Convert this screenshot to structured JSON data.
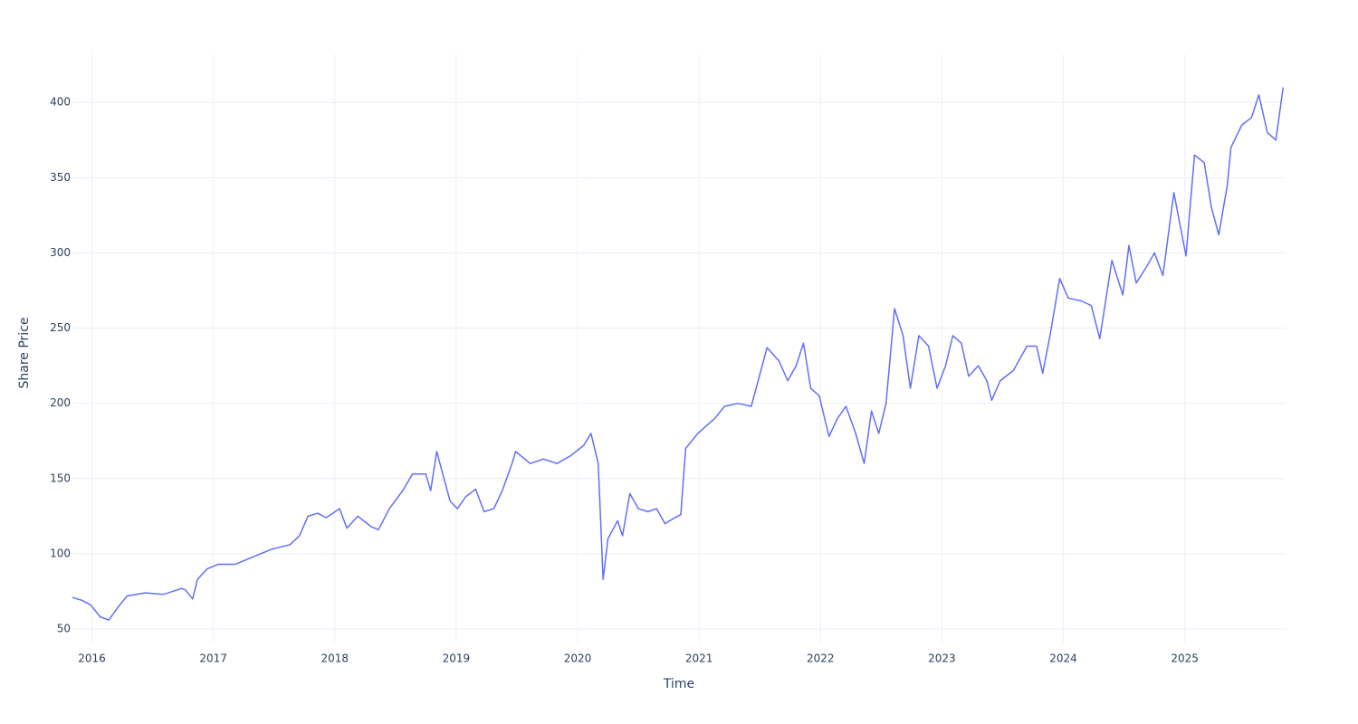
{
  "chart_data": {
    "type": "line",
    "xlabel": "Time",
    "ylabel": "Share Price",
    "color": "#636efa",
    "grid": true,
    "xlim": [
      2015.84,
      2025.83
    ],
    "xticks": [
      2016,
      2017,
      2018,
      2019,
      2020,
      2021,
      2022,
      2023,
      2024,
      2025
    ],
    "ylim": [
      41,
      432
    ],
    "yticks": [
      50,
      100,
      150,
      200,
      250,
      300,
      350,
      400
    ],
    "x": [
      2015.84,
      2015.92,
      2015.99,
      2016.07,
      2016.14,
      2016.22,
      2016.29,
      2016.44,
      2016.59,
      2016.74,
      2016.77,
      2016.83,
      2016.87,
      2016.95,
      2017.04,
      2017.18,
      2017.33,
      2017.48,
      2017.63,
      2017.71,
      2017.78,
      2017.86,
      2017.93,
      2018.04,
      2018.1,
      2018.19,
      2018.3,
      2018.36,
      2018.45,
      2018.56,
      2018.64,
      2018.75,
      2018.79,
      2018.84,
      2018.9,
      2018.95,
      2019.01,
      2019.08,
      2019.16,
      2019.23,
      2019.31,
      2019.38,
      2019.46,
      2019.49,
      2019.61,
      2019.72,
      2019.83,
      2019.94,
      2020.05,
      2020.11,
      2020.17,
      2020.21,
      2020.25,
      2020.33,
      2020.37,
      2020.43,
      2020.5,
      2020.58,
      2020.65,
      2020.72,
      2020.8,
      2020.85,
      2020.89,
      2020.99,
      2021.06,
      2021.13,
      2021.21,
      2021.32,
      2021.43,
      2021.56,
      2021.66,
      2021.73,
      2021.8,
      2021.86,
      2021.92,
      2021.99,
      2022.07,
      2022.14,
      2022.21,
      2022.29,
      2022.36,
      2022.42,
      2022.48,
      2022.54,
      2022.61,
      2022.68,
      2022.74,
      2022.81,
      2022.89,
      2022.96,
      2023.03,
      2023.09,
      2023.16,
      2023.22,
      2023.3,
      2023.37,
      2023.41,
      2023.48,
      2023.59,
      2023.7,
      2023.78,
      2023.83,
      2023.89,
      2023.97,
      2024.04,
      2024.15,
      2024.23,
      2024.3,
      2024.4,
      2024.49,
      2024.54,
      2024.6,
      2024.68,
      2024.75,
      2024.82,
      2024.91,
      2025.01,
      2025.08,
      2025.16,
      2025.22,
      2025.28,
      2025.35,
      2025.38,
      2025.47,
      2025.55,
      2025.61,
      2025.68,
      2025.75,
      2025.81
    ],
    "values": [
      71,
      69,
      66,
      58,
      56,
      65,
      72,
      74,
      73,
      77,
      76,
      70,
      83,
      90,
      93,
      93,
      98,
      103,
      106,
      112,
      125,
      127,
      124,
      130,
      117,
      125,
      118,
      116,
      130,
      142,
      153,
      153,
      142,
      168,
      150,
      135,
      130,
      138,
      143,
      128,
      130,
      142,
      160,
      168,
      160,
      163,
      160,
      165,
      172,
      180,
      160,
      83,
      110,
      122,
      112,
      140,
      130,
      128,
      130,
      120,
      124,
      126,
      170,
      180,
      185,
      190,
      198,
      200,
      198,
      237,
      228,
      215,
      225,
      240,
      210,
      205,
      178,
      190,
      198,
      180,
      160,
      195,
      180,
      200,
      263,
      245,
      210,
      245,
      238,
      210,
      225,
      245,
      240,
      218,
      225,
      215,
      202,
      215,
      222,
      238,
      238,
      220,
      245,
      283,
      270,
      268,
      265,
      243,
      295,
      272,
      305,
      280,
      290,
      300,
      285,
      340,
      298,
      365,
      360,
      330,
      312,
      345,
      370,
      385,
      390,
      405,
      380,
      375,
      410
    ]
  }
}
